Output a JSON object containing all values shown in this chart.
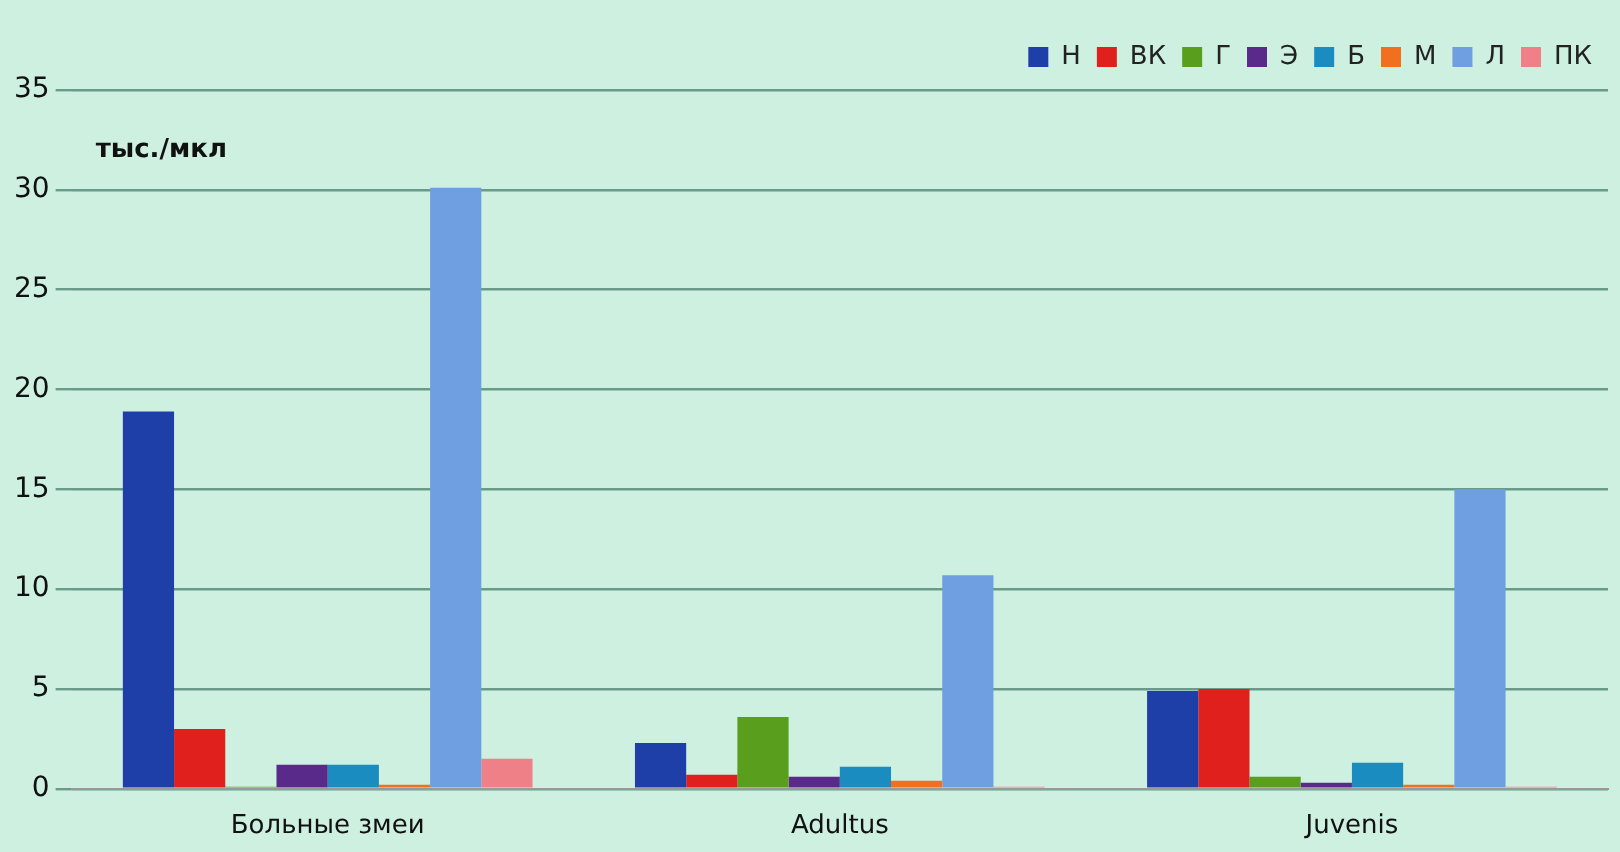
{
  "chart_data": {
    "type": "bar",
    "ylabel": "тыс./мкл",
    "categories": [
      "Больные змеи",
      "Adultus",
      "Juvenis"
    ],
    "series": [
      {
        "name": "Н",
        "color": "#1f3fa8",
        "values": [
          18.9,
          2.3,
          4.9
        ]
      },
      {
        "name": "ВК",
        "color": "#e0201c",
        "values": [
          3.0,
          0.7,
          5.0
        ]
      },
      {
        "name": "Г",
        "color": "#5a9e1e",
        "values": [
          0.1,
          3.6,
          0.6
        ]
      },
      {
        "name": "Э",
        "color": "#5a2a8a",
        "values": [
          1.2,
          0.6,
          0.3
        ]
      },
      {
        "name": "Б",
        "color": "#1a8cbf",
        "values": [
          1.2,
          1.1,
          1.3
        ]
      },
      {
        "name": "М",
        "color": "#f07020",
        "values": [
          0.2,
          0.4,
          0.2
        ]
      },
      {
        "name": "Л",
        "color": "#6f9fe0",
        "values": [
          30.1,
          10.7,
          15.0
        ]
      },
      {
        "name": "ПК",
        "color": "#f08088",
        "values": [
          1.5,
          0.1,
          0.1
        ]
      }
    ],
    "ylim": [
      0,
      35
    ],
    "yticks": [
      0,
      5,
      10,
      15,
      20,
      25,
      30,
      35
    ],
    "grid": "y",
    "legend": "top right"
  }
}
